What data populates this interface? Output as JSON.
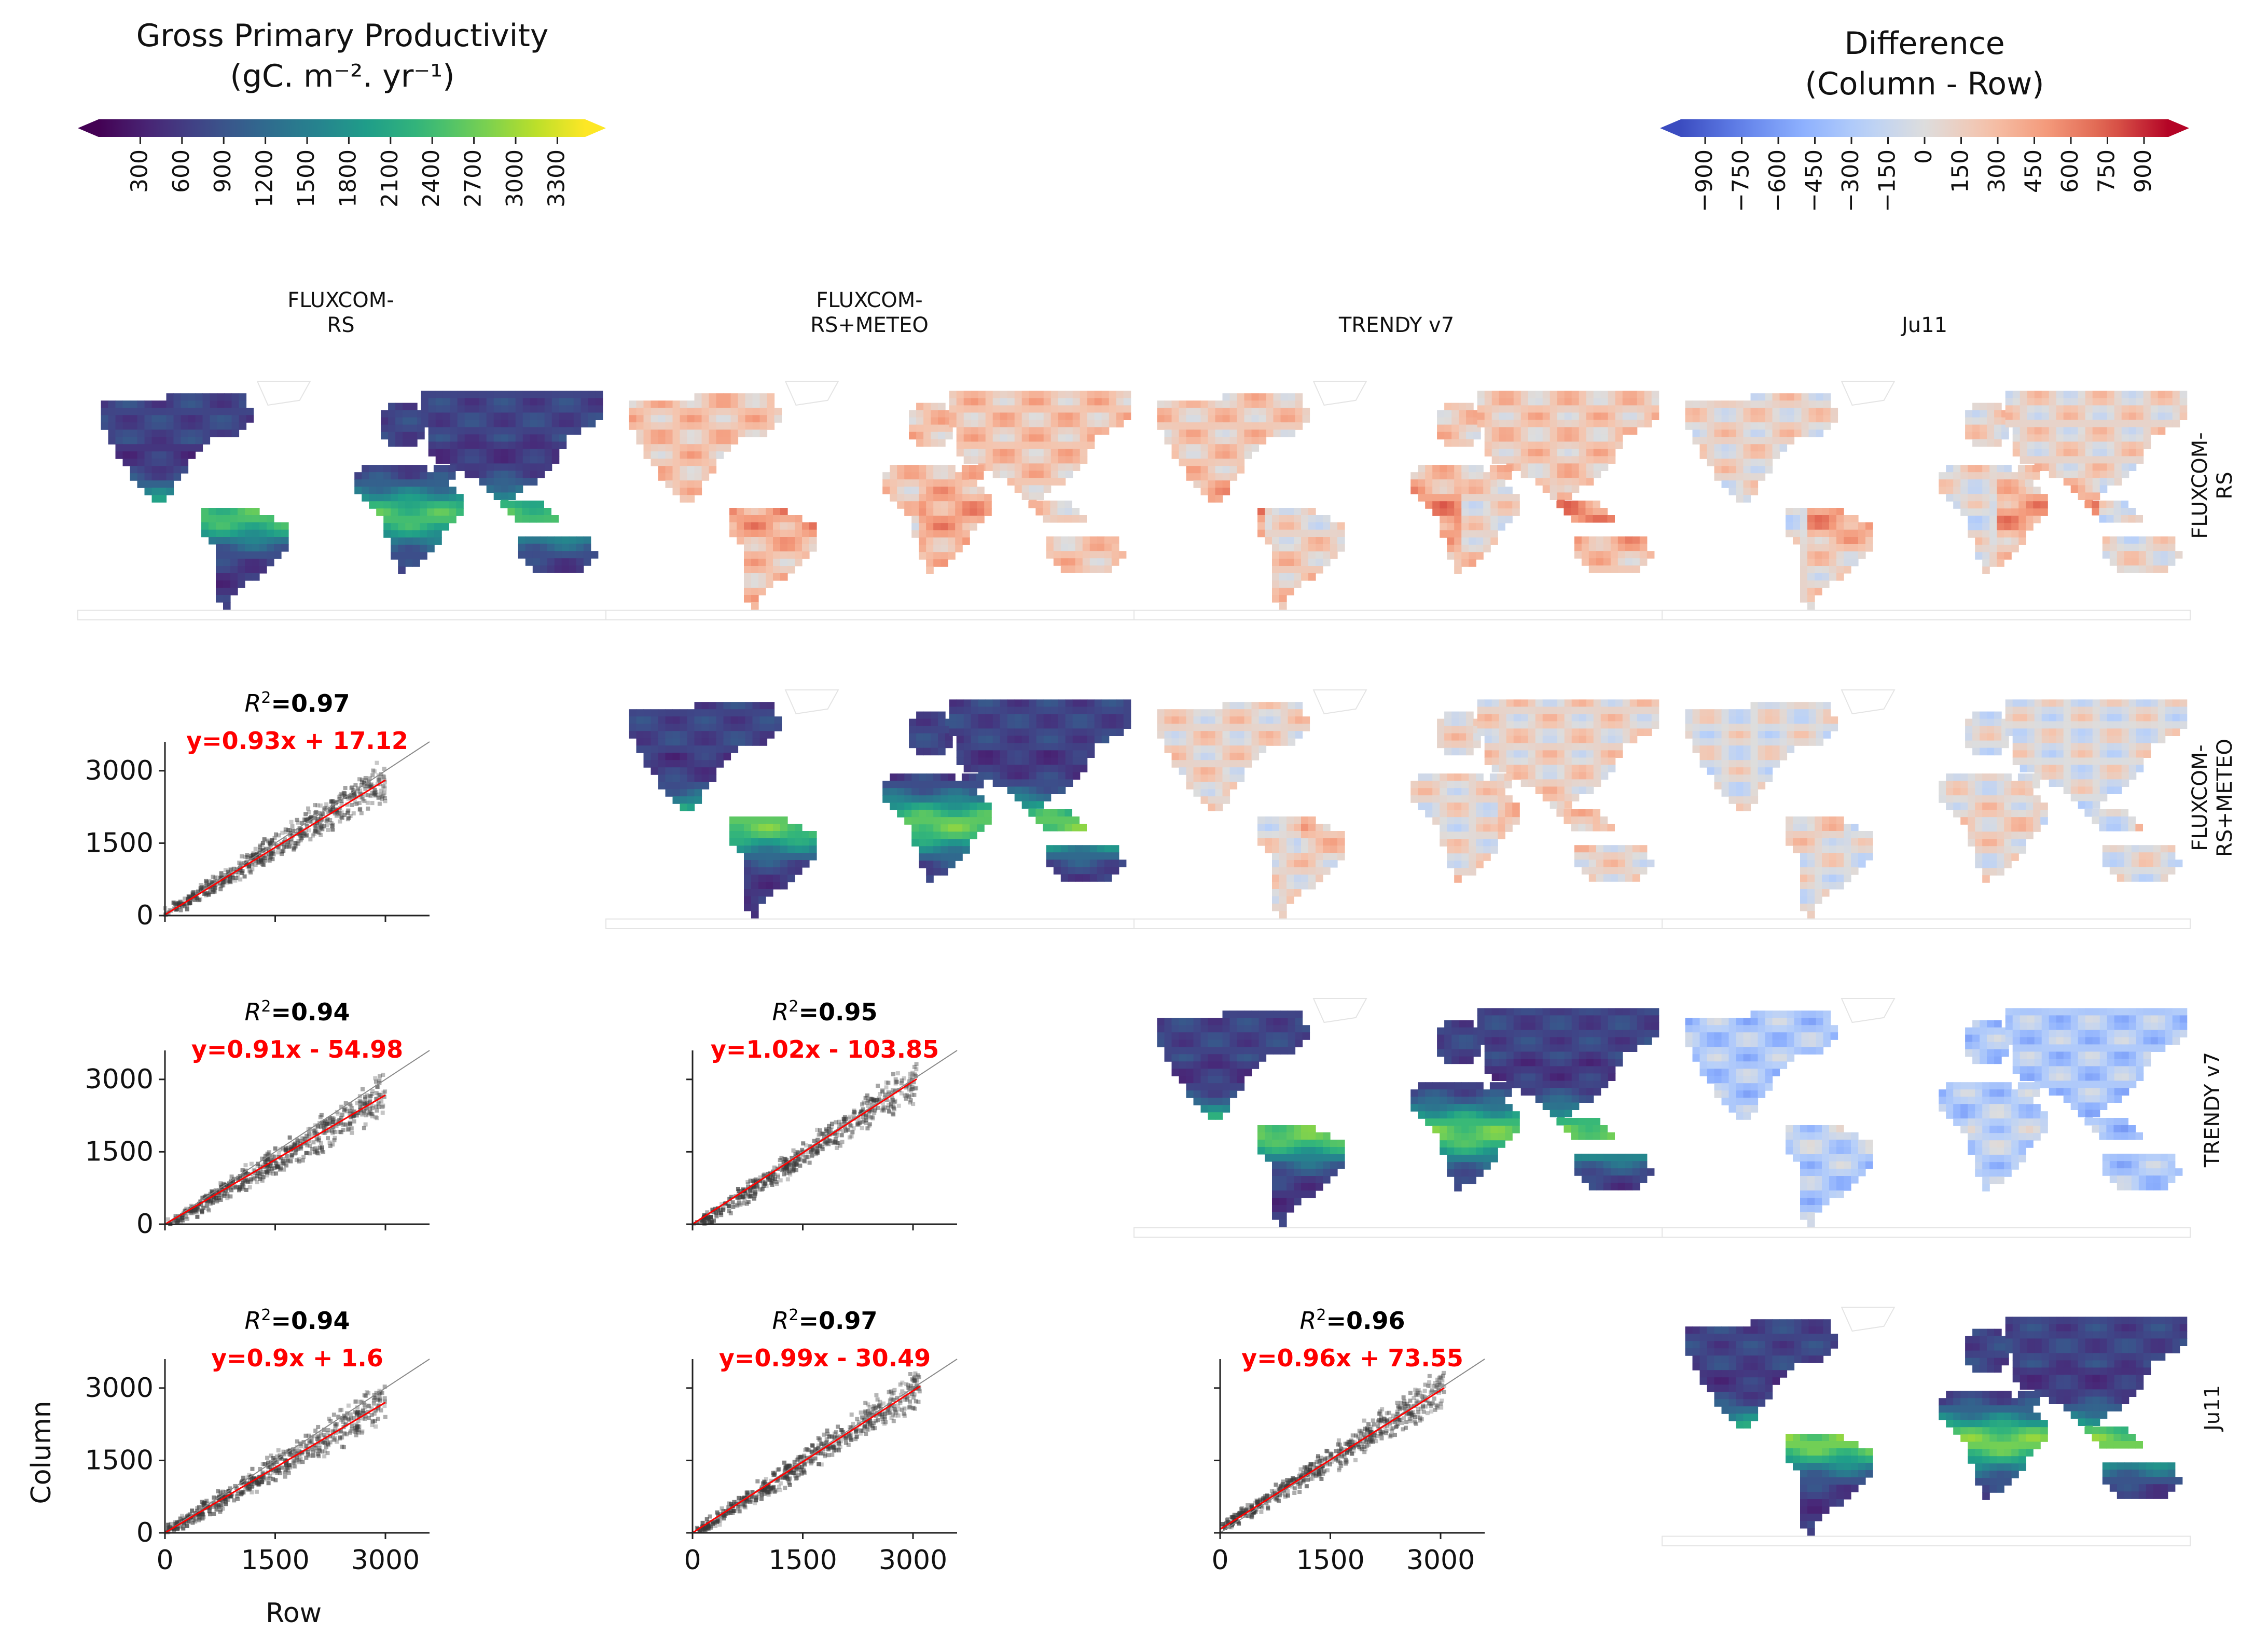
{
  "colorbars": {
    "gpp": {
      "title": "Gross Primary Productivity",
      "units": "(gC. m⁻². yr⁻¹)",
      "ticks": [
        "300",
        "600",
        "900",
        "1200",
        "1500",
        "1800",
        "2100",
        "2400",
        "2700",
        "3000",
        "3300"
      ],
      "range": [
        0,
        3500
      ],
      "colormap": "viridis"
    },
    "diff": {
      "title": "Difference",
      "subtitle": "(Column - Row)",
      "ticks": [
        "−900",
        "−750",
        "−600",
        "−450",
        "−300",
        "−150",
        "0",
        "150",
        "300",
        "450",
        "600",
        "750",
        "900"
      ],
      "range": [
        -1000,
        1000
      ],
      "colormap": "coolwarm"
    }
  },
  "columns": [
    "FLUXCOM-\nRS",
    "FLUXCOM-\nRS+METEO",
    "TRENDY v7",
    "Ju11"
  ],
  "rows": [
    "FLUXCOM-\nRS",
    "FLUXCOM-\nRS+METEO",
    "TRENDY v7",
    "Ju11"
  ],
  "axis_labels": {
    "x": "Row",
    "y": "Column"
  },
  "colors": {
    "fit_line": "#ff0000",
    "one_to_one": "#888888",
    "points": "#3a3a3a",
    "land_outline": "#d9d9d9"
  },
  "chart_data": [
    {
      "type": "scatter",
      "panel": "FLUXCOM-RS+METEO vs FLUXCOM-RS",
      "r2_label": "=0.97",
      "fit_label": "y=0.93x + 17.12",
      "slope": 0.93,
      "intercept": 17.12,
      "x_range": [
        0,
        3000
      ],
      "xlim": [
        0,
        3600
      ],
      "ylim": [
        0,
        3600
      ],
      "yticks": [
        "0",
        "1500",
        "3000"
      ],
      "xticks": []
    },
    {
      "type": "scatter",
      "panel": "TRENDY v7 vs FLUXCOM-RS",
      "r2_label": "=0.94",
      "fit_label": "y=0.91x - 54.98",
      "slope": 0.91,
      "intercept": -54.98,
      "x_range": [
        0,
        3000
      ],
      "xlim": [
        0,
        3600
      ],
      "ylim": [
        0,
        3600
      ],
      "yticks": [
        "0",
        "1500",
        "3000"
      ],
      "xticks": []
    },
    {
      "type": "scatter",
      "panel": "TRENDY v7 vs FLUXCOM-RS+METEO",
      "r2_label": "=0.95",
      "fit_label": "y=1.02x - 103.85",
      "slope": 1.02,
      "intercept": -103.85,
      "x_range": [
        0,
        3050
      ],
      "xlim": [
        0,
        3600
      ],
      "ylim": [
        0,
        3600
      ],
      "yticks": [],
      "xticks": []
    },
    {
      "type": "scatter",
      "panel": "Ju11 vs FLUXCOM-RS",
      "r2_label": "=0.94",
      "fit_label": "y=0.9x + 1.6",
      "slope": 0.9,
      "intercept": 1.6,
      "x_range": [
        0,
        3000
      ],
      "xlim": [
        0,
        3600
      ],
      "ylim": [
        0,
        3600
      ],
      "yticks": [
        "0",
        "1500",
        "3000"
      ],
      "xticks": [
        "0",
        "1500",
        "3000"
      ]
    },
    {
      "type": "scatter",
      "panel": "Ju11 vs FLUXCOM-RS+METEO",
      "r2_label": "=0.97",
      "fit_label": "y=0.99x - 30.49",
      "slope": 0.99,
      "intercept": -30.49,
      "x_range": [
        0,
        3100
      ],
      "xlim": [
        0,
        3600
      ],
      "ylim": [
        0,
        3600
      ],
      "yticks": [],
      "xticks": [
        "0",
        "1500",
        "3000"
      ]
    },
    {
      "type": "scatter",
      "panel": "Ju11 vs TRENDY v7",
      "r2_label": "=0.96",
      "fit_label": "y=0.96x + 73.55",
      "slope": 0.96,
      "intercept": 73.55,
      "x_range": [
        0,
        3050
      ],
      "xlim": [
        0,
        3600
      ],
      "ylim": [
        0,
        3600
      ],
      "yticks": [],
      "xticks": [
        "0",
        "1500",
        "3000"
      ]
    }
  ],
  "maps": [
    {
      "row": 0,
      "col": 0,
      "kind": "gpp",
      "tropical_boost": 1.0,
      "bias": 0.0
    },
    {
      "row": 0,
      "col": 1,
      "kind": "diff",
      "tropical_boost": 0.35,
      "bias": 0.12
    },
    {
      "row": 0,
      "col": 2,
      "kind": "diff",
      "tropical_boost": 0.6,
      "bias": 0.1
    },
    {
      "row": 0,
      "col": 3,
      "kind": "diff",
      "tropical_boost": 0.65,
      "bias": 0.05
    },
    {
      "row": 1,
      "col": 1,
      "kind": "gpp",
      "tropical_boost": 1.1,
      "bias": 0.0
    },
    {
      "row": 1,
      "col": 2,
      "kind": "diff",
      "tropical_boost": 0.3,
      "bias": 0.05
    },
    {
      "row": 1,
      "col": 3,
      "kind": "diff",
      "tropical_boost": 0.25,
      "bias": 0.0
    },
    {
      "row": 2,
      "col": 2,
      "kind": "gpp",
      "tropical_boost": 1.1,
      "bias": 0.0
    },
    {
      "row": 2,
      "col": 3,
      "kind": "diff",
      "tropical_boost": 0.2,
      "bias": -0.15
    },
    {
      "row": 3,
      "col": 3,
      "kind": "gpp",
      "tropical_boost": 1.15,
      "bias": 0.0
    }
  ]
}
